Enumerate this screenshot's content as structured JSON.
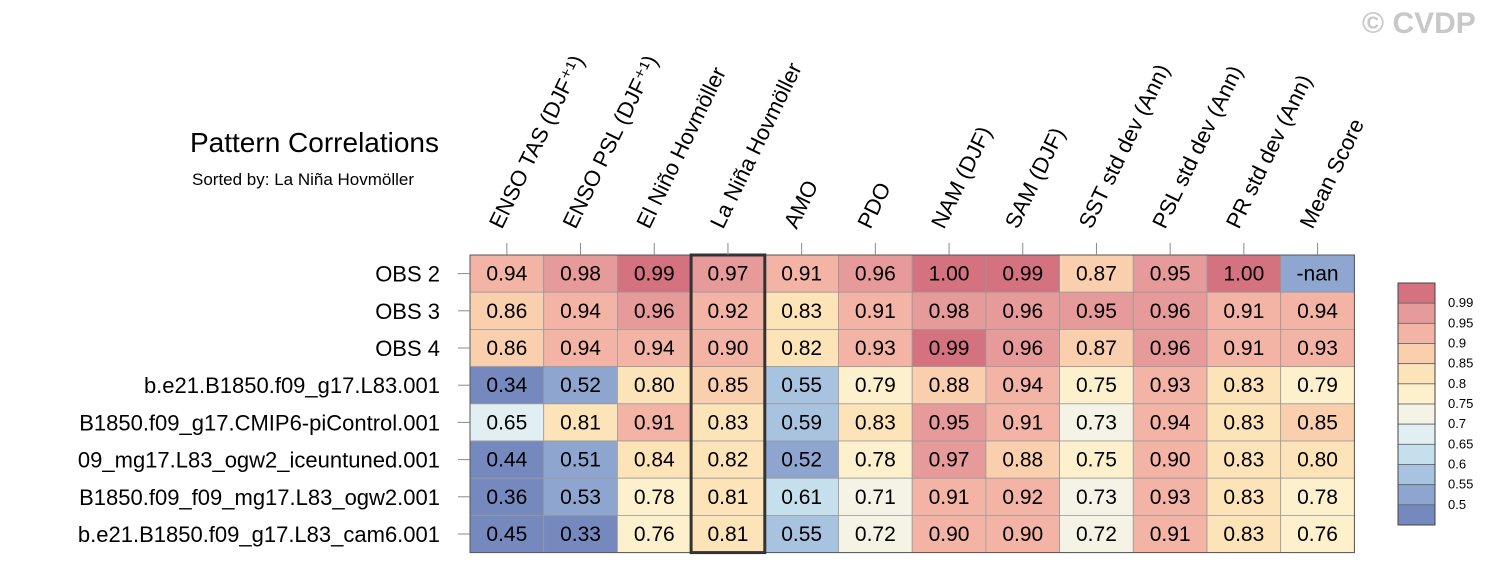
{
  "header": {
    "title": "Pattern Correlations",
    "subtitle": "Sorted by: La Niña Hovmöller",
    "watermark": "© CVDP"
  },
  "chart_data": {
    "type": "heatmap",
    "columns": [
      "ENSO TAS (DJF⁺¹)",
      "ENSO PSL (DJF⁺¹)",
      "El Niño Hovmöller",
      "La Niña Hovmöller",
      "AMO",
      "PDO",
      "NAM (DJF)",
      "SAM (DJF)",
      "SST std dev (Ann)",
      "PSL std dev (Ann)",
      "PR std dev (Ann)",
      "Mean Score"
    ],
    "rows": [
      "OBS 2",
      "OBS 3",
      "OBS 4",
      "b.e21.B1850.f09_g17.L83.001",
      "B1850.f09_g17.CMIP6-piControl.001",
      "09_mg17.L83_ogw2_iceuntuned.001",
      "B1850.f09_f09_mg17.L83_ogw2.001",
      "b.e21.B1850.f09_g17.L83_cam6.001"
    ],
    "values": [
      [
        "0.94",
        "0.98",
        "0.99",
        "0.97",
        "0.91",
        "0.96",
        "1.00",
        "0.99",
        "0.87",
        "0.95",
        "1.00",
        "-nan"
      ],
      [
        "0.86",
        "0.94",
        "0.96",
        "0.92",
        "0.83",
        "0.91",
        "0.98",
        "0.96",
        "0.95",
        "0.96",
        "0.91",
        "0.94"
      ],
      [
        "0.86",
        "0.94",
        "0.94",
        "0.90",
        "0.82",
        "0.93",
        "0.99",
        "0.96",
        "0.87",
        "0.96",
        "0.91",
        "0.93"
      ],
      [
        "0.34",
        "0.52",
        "0.80",
        "0.85",
        "0.55",
        "0.79",
        "0.88",
        "0.94",
        "0.75",
        "0.93",
        "0.83",
        "0.79"
      ],
      [
        "0.65",
        "0.81",
        "0.91",
        "0.83",
        "0.59",
        "0.83",
        "0.95",
        "0.91",
        "0.73",
        "0.94",
        "0.83",
        "0.85"
      ],
      [
        "0.44",
        "0.51",
        "0.84",
        "0.82",
        "0.52",
        "0.78",
        "0.97",
        "0.88",
        "0.75",
        "0.90",
        "0.83",
        "0.80"
      ],
      [
        "0.36",
        "0.53",
        "0.78",
        "0.81",
        "0.61",
        "0.71",
        "0.91",
        "0.92",
        "0.73",
        "0.93",
        "0.83",
        "0.78"
      ],
      [
        "0.45",
        "0.33",
        "0.76",
        "0.81",
        "0.55",
        "0.72",
        "0.90",
        "0.90",
        "0.72",
        "0.91",
        "0.83",
        "0.76"
      ]
    ],
    "highlight_column": "La Niña Hovmöller",
    "colorbar": {
      "levels": [
        "0.99",
        "0.95",
        "0.9",
        "0.85",
        "0.8",
        "0.75",
        "0.7",
        "0.65",
        "0.6",
        "0.55",
        "0.5"
      ],
      "colors": [
        "#d4727f",
        "#e69a9a",
        "#f3b4a6",
        "#f9cfae",
        "#fde3b8",
        "#fdf0cd",
        "#f4f3e6",
        "#e1eef2",
        "#c6dfec",
        "#a8c3df",
        "#8ea6cf",
        "#7589bf"
      ]
    }
  }
}
